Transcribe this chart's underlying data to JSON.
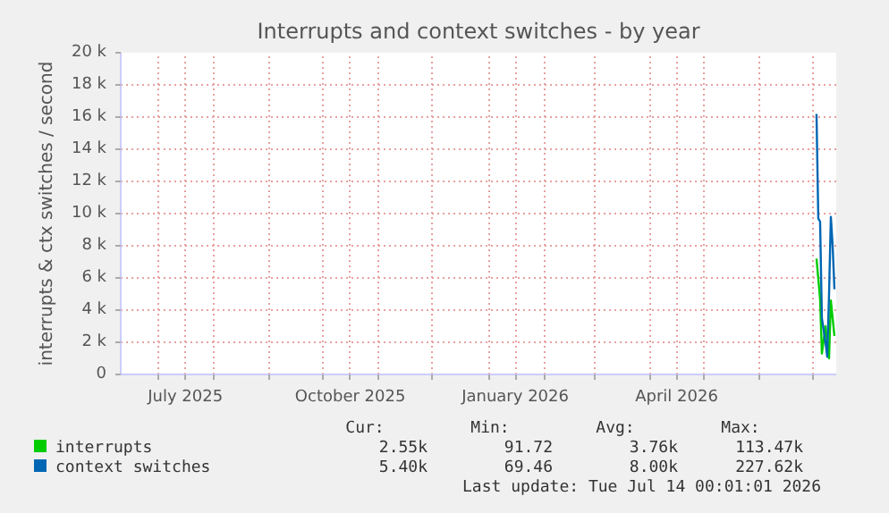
{
  "chart_data": {
    "type": "line",
    "title": "Interrupts and context switches - by year",
    "ylabel": "interrupts & ctx switches / second",
    "xlim": [
      "2025-06-10",
      "2026-07-14"
    ],
    "xticks": [
      {
        "value": "2025-07-01",
        "label": null
      },
      {
        "value": "2025-07-16",
        "label": "July 2025"
      },
      {
        "value": "2025-08-01",
        "label": null
      },
      {
        "value": "2025-09-01",
        "label": null
      },
      {
        "value": "2025-10-01",
        "label": null
      },
      {
        "value": "2025-10-16",
        "label": "October 2025"
      },
      {
        "value": "2025-11-01",
        "label": null
      },
      {
        "value": "2025-12-01",
        "label": null
      },
      {
        "value": "2026-01-01",
        "label": null
      },
      {
        "value": "2026-01-16",
        "label": "January 2026"
      },
      {
        "value": "2026-02-01",
        "label": null
      },
      {
        "value": "2026-03-01",
        "label": null
      },
      {
        "value": "2026-04-01",
        "label": null
      },
      {
        "value": "2026-04-16",
        "label": "April 2026"
      },
      {
        "value": "2026-05-01",
        "label": null
      },
      {
        "value": "2026-06-01",
        "label": null
      },
      {
        "value": "2026-07-01",
        "label": null
      }
    ],
    "ylim": [
      0,
      20000
    ],
    "yticks": [
      0,
      {
        "value": 2000,
        "label": "2 k"
      },
      {
        "value": 4000,
        "label": "4 k"
      },
      {
        "value": 6000,
        "label": "6 k"
      },
      {
        "value": 8000,
        "label": "8 k"
      },
      {
        "value": 10000,
        "label": "10 k"
      },
      {
        "value": 12000,
        "label": "12 k"
      },
      {
        "value": 14000,
        "label": "14 k"
      },
      {
        "value": 16000,
        "label": "16 k"
      },
      {
        "value": 18000,
        "label": "18 k"
      },
      {
        "value": 20000,
        "label": "20 k"
      }
    ],
    "grid": true,
    "legend": "bottom",
    "series": [
      {
        "name": "interrupts",
        "color": "#00cc00",
        "x": [
          "2026-07-03",
          "2026-07-05",
          "2026-07-06",
          "2026-07-08",
          "2026-07-10",
          "2026-07-11",
          "2026-07-13"
        ],
        "values": [
          7200,
          4700,
          1300,
          3000,
          1000,
          4600,
          2400
        ]
      },
      {
        "name": "context switches",
        "color": "#0066b3",
        "x": [
          "2026-07-03",
          "2026-07-04",
          "2026-07-05",
          "2026-07-06",
          "2026-07-08",
          "2026-07-09",
          "2026-07-10",
          "2026-07-11",
          "2026-07-12",
          "2026-07-13"
        ],
        "values": [
          16200,
          9700,
          9500,
          3500,
          2000,
          1100,
          5000,
          9800,
          8000,
          5300
        ]
      }
    ],
    "annotations": [
      "Cur:",
      "Min:",
      "Avg:",
      "Max:",
      "2.55k",
      "91.72",
      "3.76k",
      "113.47k",
      "5.40k",
      "69.46",
      "8.00k",
      "227.62k",
      "Last update: Tue Jul 14 00:01:01 2026"
    ]
  }
}
